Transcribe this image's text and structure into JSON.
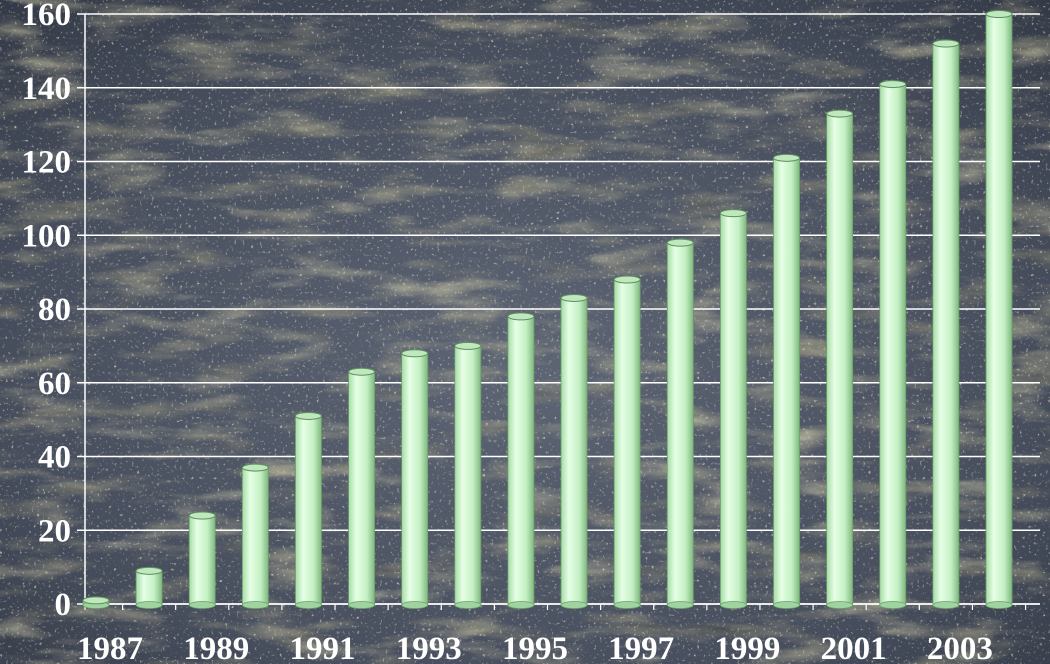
{
  "chart_data": {
    "type": "bar",
    "categories": [
      "1987",
      "1988",
      "1989",
      "1990",
      "1991",
      "1992",
      "1993",
      "1994",
      "1995",
      "1996",
      "1997",
      "1998",
      "1999",
      "2000",
      "2001",
      "2002",
      "2003",
      "2004"
    ],
    "x_tick_labels": [
      "1987",
      "1989",
      "1991",
      "1993",
      "1995",
      "1997",
      "1999",
      "2001",
      "2003"
    ],
    "values": [
      1,
      9,
      24,
      37,
      51,
      63,
      68,
      70,
      78,
      83,
      88,
      98,
      106,
      121,
      133,
      141,
      152,
      160
    ],
    "y_ticks": [
      0,
      20,
      40,
      60,
      80,
      100,
      120,
      140,
      160
    ],
    "ylim": [
      0,
      160
    ],
    "grid": true,
    "bar_style": "3D cylinders",
    "colors": {
      "bar": "#c8f5c8",
      "bar_shadow": "#8fc98f",
      "grid": "#ffffff",
      "labels": "#ffffff",
      "background": "#4d5566"
    }
  }
}
